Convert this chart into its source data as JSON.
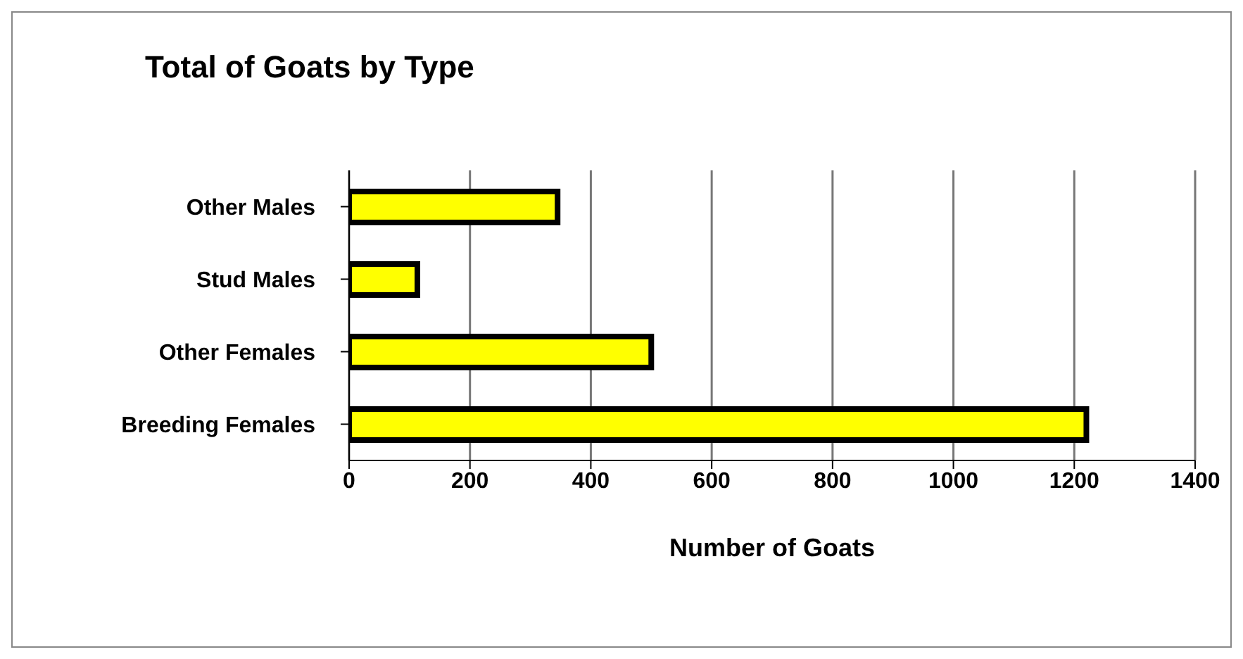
{
  "chart_data": {
    "type": "bar",
    "orientation": "horizontal",
    "title": "Total of Goats by Type",
    "xlabel": "Number of Goats",
    "categories": [
      "Other Males",
      "Stud Males",
      "Other Females",
      "Breeding Females"
    ],
    "values": [
      345,
      113,
      500,
      1220
    ],
    "color": "#ffff00",
    "xlim": [
      0,
      1400
    ],
    "xticks": [
      0,
      200,
      400,
      600,
      800,
      1000,
      1200,
      1400
    ],
    "grid": "x",
    "legend": false
  }
}
